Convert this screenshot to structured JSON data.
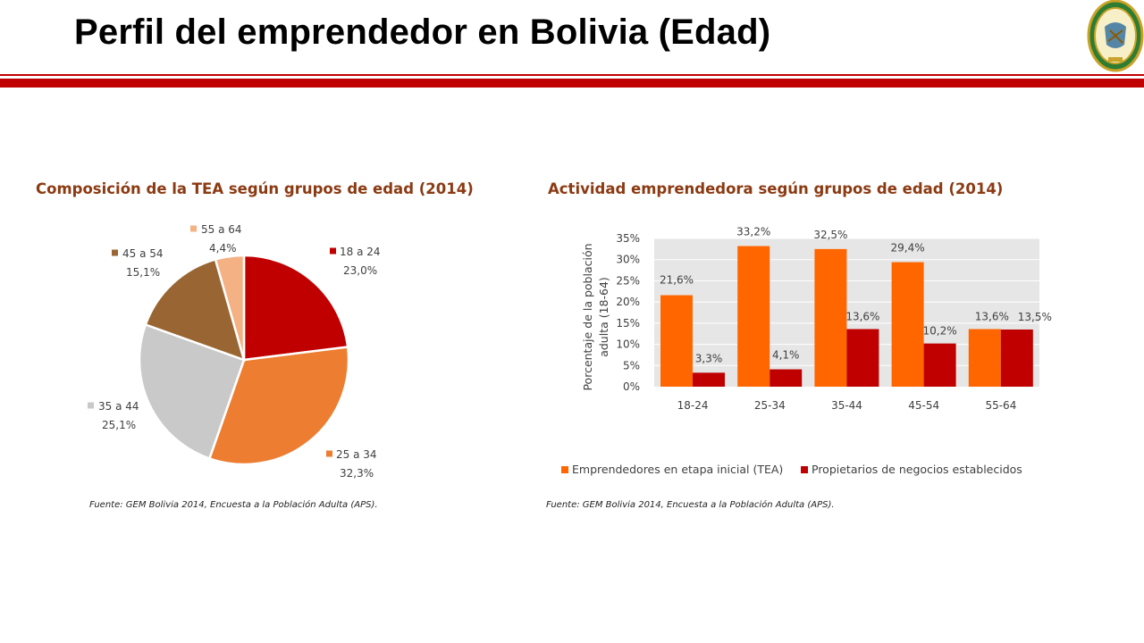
{
  "header": {
    "title": "Perfil del emprendedor en Bolivia (Edad)",
    "accent_color": "#c00000"
  },
  "logo": {
    "icon": "university-seal-icon"
  },
  "chart_data": [
    {
      "type": "pie",
      "title": "Composición  de la TEA según grupos de edad (2014)",
      "source": "Fuente: GEM  Bolivia 2014, Encuesta  a la Población Adulta (APS).",
      "slices": [
        {
          "label": "18 a 24",
          "value_label": "23,0%",
          "value": 23.0,
          "color": "#c00000"
        },
        {
          "label": "25 a 34",
          "value_label": "32,3%",
          "value": 32.3,
          "color": "#ed7d31"
        },
        {
          "label": "35 a 44",
          "value_label": "25,1%",
          "value": 25.1,
          "color": "#c9c9c9"
        },
        {
          "label": "45 a 54",
          "value_label": "15,1%",
          "value": 15.1,
          "color": "#996633"
        },
        {
          "label": "55 a 64",
          "value_label": "4,4%",
          "value": 4.4,
          "color": "#f4b183"
        }
      ]
    },
    {
      "type": "bar",
      "title": "Actividad emprendedora según grupos de edad (2014)",
      "source": "Fuente: GEM  Bolivia 2014, Encuesta  a la Población Adulta (APS).",
      "ylabel": "Porcentaje de la población adulta (18-64)",
      "ylim": [
        0,
        35
      ],
      "yticks": [
        "0%",
        "5%",
        "10%",
        "15%",
        "20%",
        "25%",
        "30%",
        "35%"
      ],
      "categories": [
        "18-24",
        "25-34",
        "35-44",
        "45-54",
        "55-64"
      ],
      "legend_position": "bottom",
      "plot_background": "#e6e6e6",
      "grid": true,
      "series": [
        {
          "name": "Emprendedores en etapa inicial (TEA)",
          "color": "#ff6600",
          "values": [
            21.6,
            33.2,
            32.5,
            29.4,
            13.6
          ],
          "labels": [
            "21,6%",
            "33,2%",
            "32,5%",
            "29,4%",
            "13,6%"
          ]
        },
        {
          "name": "Propietarios de negocios establecidos",
          "color": "#c00000",
          "values": [
            3.3,
            4.1,
            13.6,
            10.2,
            13.5
          ],
          "labels": [
            "3,3%",
            "4,1%",
            "13,6%",
            "10,2%",
            "13,5%"
          ]
        }
      ]
    }
  ]
}
